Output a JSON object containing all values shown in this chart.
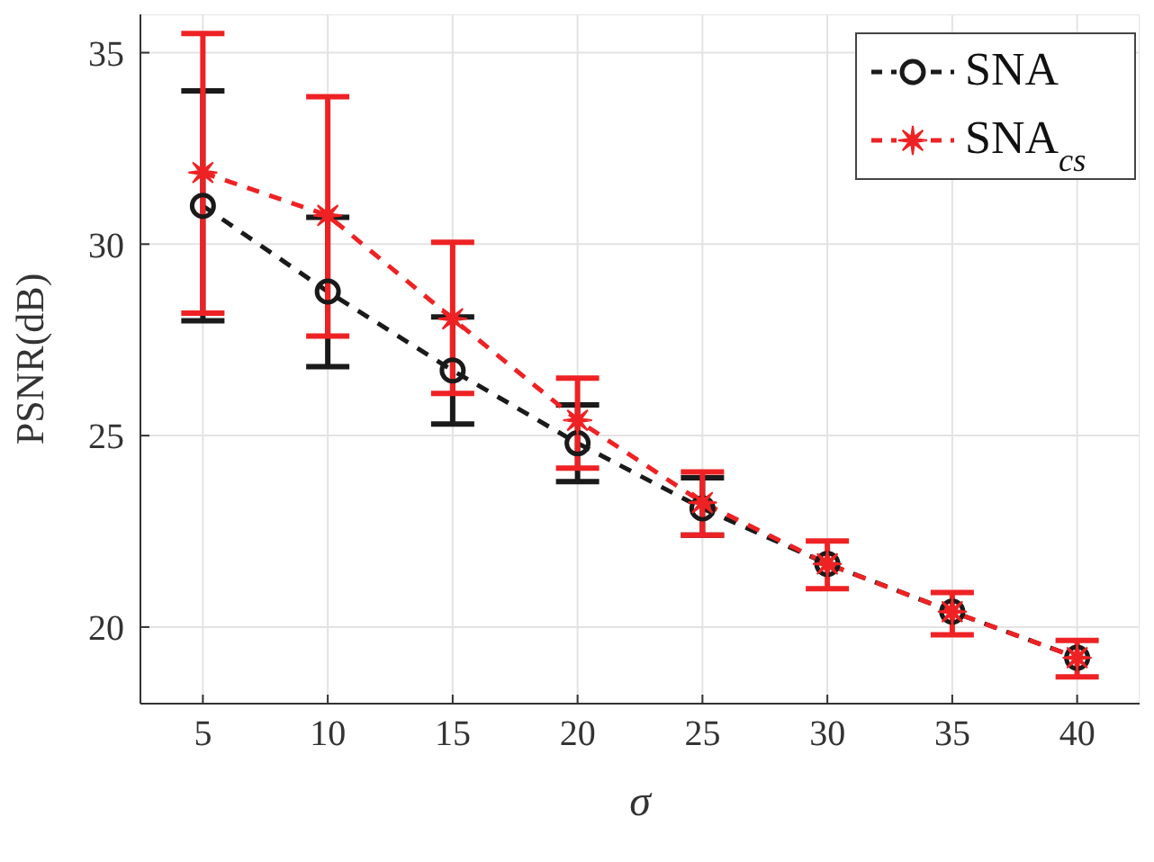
{
  "chart_data": {
    "type": "line",
    "xlabel": "σ",
    "ylabel": "PSNR(dB)",
    "x": [
      5,
      10,
      15,
      20,
      25,
      30,
      35,
      40
    ],
    "xlim": [
      2.5,
      42.5
    ],
    "xticks": [
      5,
      10,
      15,
      20,
      25,
      30,
      35,
      40
    ],
    "ylim": [
      18,
      36
    ],
    "yticks": [
      20,
      25,
      30,
      35
    ],
    "grid": true,
    "legend": "top right",
    "line_style": "dashed",
    "series": [
      {
        "name": "SNA",
        "color": "#1a1a1a",
        "marker": "circle",
        "values": [
          31.0,
          28.76,
          26.7,
          24.8,
          23.1,
          21.65,
          20.4,
          19.2
        ],
        "errors": [
          [
            28.0,
            34.0
          ],
          [
            26.8,
            30.7
          ],
          [
            25.3,
            28.1
          ],
          [
            23.8,
            25.8
          ],
          [
            22.4,
            23.9
          ],
          null,
          null,
          null
        ]
      },
      {
        "name": "SNA$_{cs}$",
        "color": "#ee2224",
        "marker": "star",
        "values": [
          31.87,
          30.75,
          28.05,
          25.4,
          23.25,
          21.65,
          20.4,
          19.2
        ],
        "errors": [
          [
            28.2,
            35.5
          ],
          [
            27.6,
            33.85
          ],
          [
            26.1,
            30.05
          ],
          [
            24.15,
            26.5
          ],
          [
            22.4,
            24.05
          ],
          [
            21.0,
            22.25
          ],
          [
            19.8,
            20.9
          ],
          [
            18.7,
            19.65
          ]
        ]
      }
    ]
  }
}
